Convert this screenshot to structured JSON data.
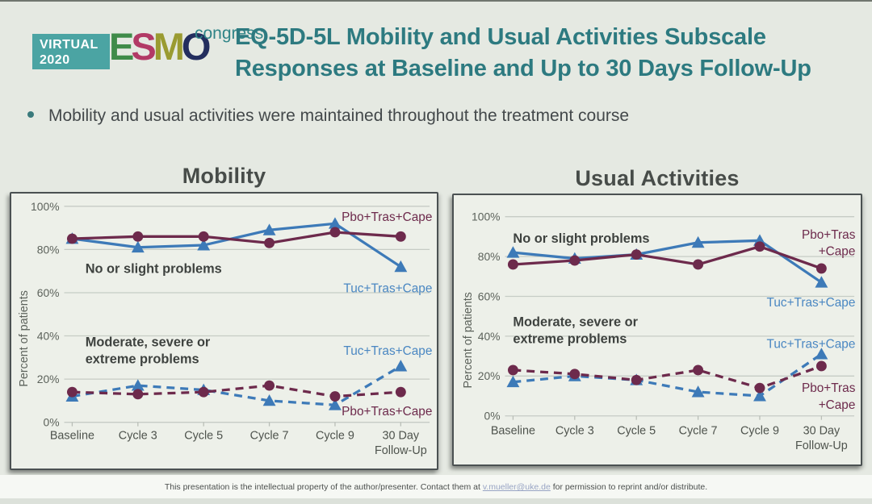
{
  "colors": {
    "accent_teal": "#2d7a80",
    "pbo": "#6d2a4c",
    "tuc": "#3d7ab8",
    "tuc_label": "#4a87c2",
    "grid": "#c6ccc5",
    "logo_box_teal": "#4ba4a3",
    "esmo_letter_colors": [
      "#3f8b49",
      "#b23a66",
      "#9a9b31",
      "#232e5e"
    ],
    "congress_teal": "#2f8487"
  },
  "header": {
    "logo": {
      "badge_line1": "VIRTUAL",
      "badge_line2": "2020",
      "esmo_letters": [
        "E",
        "S",
        "M",
        "O"
      ],
      "congress": "congress"
    },
    "title_line1": "EQ-5D-5L Mobility and Usual Activities Subscale",
    "title_line2": "Responses at Baseline and Up to 30 Days Follow-Up"
  },
  "bullet_text": "Mobility and usual activities were maintained throughout the treatment course",
  "footer": {
    "text_before_link": "This presentation is the intellectual property of the author/presenter. Contact them at ",
    "link_text": "v.mueller@uke.de",
    "text_after_link": " for permission to reprint and/or distribute."
  },
  "chart_data": [
    {
      "type": "line",
      "title": "Mobility",
      "ylabel": "Percent of patients",
      "ylim": [
        0,
        100
      ],
      "yticks": [
        0,
        20,
        40,
        60,
        80,
        100
      ],
      "ytick_suffix": "%",
      "grid": true,
      "legend_position": "inline-right",
      "categories": [
        "Baseline",
        "Cycle 3",
        "Cycle 5",
        "Cycle 7",
        "Cycle 9",
        "30 Day|Follow-Up"
      ],
      "series": [
        {
          "name": "Tuc+Tras+Cape",
          "group": "No or slight problems",
          "color_key": "tuc",
          "marker": "triangle",
          "line_style": "solid",
          "values": [
            85,
            81,
            82,
            89,
            92,
            72
          ]
        },
        {
          "name": "Pbo+Tras+Cape",
          "group": "No or slight problems",
          "color_key": "pbo",
          "marker": "circle",
          "line_style": "solid",
          "values": [
            85,
            86,
            86,
            83,
            88,
            86
          ]
        },
        {
          "name": "Tuc+Tras+Cape",
          "group": "Moderate, severe or extreme problems",
          "color_key": "tuc",
          "marker": "triangle",
          "line_style": "dashed",
          "values": [
            12,
            17,
            15,
            10,
            8,
            26
          ]
        },
        {
          "name": "Pbo+Tras+Cape",
          "group": "Moderate, severe or extreme problems",
          "color_key": "pbo",
          "marker": "circle",
          "line_style": "dashed",
          "values": [
            14,
            13,
            14,
            17,
            12,
            14
          ]
        }
      ],
      "annotations": [
        {
          "lines": [
            "No or slight problems"
          ],
          "xi": 0.2,
          "y": 71
        },
        {
          "lines": [
            "Moderate, severe or",
            "extreme problems"
          ],
          "xi": 0.2,
          "y": 37
        }
      ],
      "series_labels": [
        {
          "lines": [
            "Pbo+Tras+Cape"
          ],
          "color_key": "pbo",
          "xi": 5.48,
          "y": 95,
          "anchor": "end"
        },
        {
          "lines": [
            "Tuc+Tras+Cape"
          ],
          "color_key": "tuc_label",
          "xi": 5.48,
          "y": 62,
          "anchor": "end"
        },
        {
          "lines": [
            "Tuc+Tras+Cape"
          ],
          "color_key": "tuc_label",
          "xi": 5.48,
          "y": 33,
          "anchor": "end"
        },
        {
          "lines": [
            "Pbo+Tras+Cape"
          ],
          "color_key": "pbo",
          "xi": 5.48,
          "y": 5,
          "anchor": "end"
        }
      ]
    },
    {
      "type": "line",
      "title": "Usual Activities",
      "ylabel": "Percent of patients",
      "ylim": [
        0,
        100
      ],
      "yticks": [
        0,
        20,
        40,
        60,
        80,
        100
      ],
      "ytick_suffix": "%",
      "grid": true,
      "legend_position": "inline-right",
      "categories": [
        "Baseline",
        "Cycle 3",
        "Cycle 5",
        "Cycle 7",
        "Cycle 9",
        "30 Day|Follow-Up"
      ],
      "series": [
        {
          "name": "Tuc+Tras+Cape",
          "group": "No or slight problems",
          "color_key": "tuc",
          "marker": "triangle",
          "line_style": "solid",
          "values": [
            82,
            79,
            81,
            87,
            88,
            67
          ]
        },
        {
          "name": "Pbo+Tras+Cape",
          "group": "No or slight problems",
          "color_key": "pbo",
          "marker": "circle",
          "line_style": "solid",
          "values": [
            76,
            78,
            81,
            76,
            85,
            74
          ]
        },
        {
          "name": "Tuc+Tras+Cape",
          "group": "Moderate, severe or extreme problems",
          "color_key": "tuc",
          "marker": "triangle",
          "line_style": "dashed",
          "values": [
            17,
            20,
            18,
            12,
            10,
            31
          ]
        },
        {
          "name": "Pbo+Tras+Cape",
          "group": "Moderate, severe or extreme problems",
          "color_key": "pbo",
          "marker": "circle",
          "line_style": "dashed",
          "values": [
            23,
            21,
            18,
            23,
            14,
            25
          ]
        }
      ],
      "annotations": [
        {
          "lines": [
            "No or slight problems"
          ],
          "xi": 0.0,
          "y": 89
        },
        {
          "lines": [
            "Moderate, severe or",
            "extreme problems"
          ],
          "xi": 0.0,
          "y": 47
        }
      ],
      "series_labels": [
        {
          "lines": [
            "Pbo+Tras",
            "+Cape"
          ],
          "color_key": "pbo",
          "xi": 5.55,
          "y": 91,
          "anchor": "end"
        },
        {
          "lines": [
            "Tuc+Tras+Cape"
          ],
          "color_key": "tuc_label",
          "xi": 5.55,
          "y": 57,
          "anchor": "end"
        },
        {
          "lines": [
            "Tuc+Tras+Cape"
          ],
          "color_key": "tuc_label",
          "xi": 5.55,
          "y": 36,
          "anchor": "end"
        },
        {
          "lines": [
            "Pbo+Tras",
            "+Cape"
          ],
          "color_key": "pbo",
          "xi": 5.55,
          "y": 14,
          "anchor": "end"
        }
      ]
    }
  ]
}
